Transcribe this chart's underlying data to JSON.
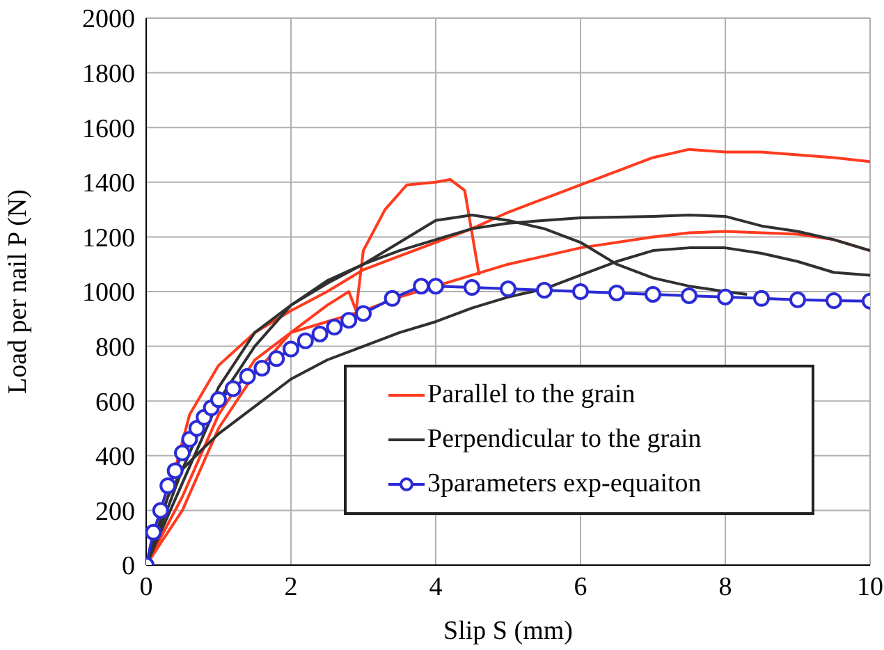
{
  "chart_data": {
    "type": "line",
    "xlabel": "Slip S (mm)",
    "ylabel": "Load per nail P (N)",
    "xlim": [
      0,
      10
    ],
    "xticks": [
      0,
      2,
      4,
      6,
      8,
      10
    ],
    "ylim": [
      0,
      2000
    ],
    "yticks": [
      0,
      200,
      400,
      600,
      800,
      1000,
      1200,
      1400,
      1600,
      1800,
      2000
    ],
    "grid": true,
    "legend": "bottom right",
    "line_style": "solid",
    "series": [
      {
        "name": "Parallel to the grain",
        "color": "#ff3b1f",
        "marker": "none",
        "x": [
          0,
          0.3,
          0.6,
          1,
          1.5,
          2,
          2.5,
          3,
          3.5,
          4,
          4.5,
          5,
          5.5,
          6,
          6.5,
          7,
          7.5,
          8,
          8.5,
          9,
          9.5,
          10
        ],
        "values": [
          0,
          250,
          550,
          730,
          850,
          930,
          1000,
          1080,
          1130,
          1180,
          1230,
          1290,
          1340,
          1390,
          1440,
          1490,
          1520,
          1510,
          1510,
          1500,
          1490,
          1475
        ]
      },
      {
        "color": "#ff3b1f",
        "marker": "none",
        "x": [
          0,
          0.5,
          1,
          1.5,
          2,
          2.5,
          2.8,
          2.9,
          3,
          3.3,
          3.6,
          4,
          4.2,
          4.4,
          4.6
        ],
        "values": [
          0,
          200,
          500,
          700,
          850,
          950,
          1000,
          930,
          1150,
          1300,
          1390,
          1400,
          1410,
          1370,
          1060
        ]
      },
      {
        "color": "#ff3b1f",
        "marker": "none",
        "x": [
          0,
          0.5,
          1,
          1.5,
          2,
          2.5,
          3,
          3.5,
          4,
          5,
          6,
          7,
          7.5,
          8,
          9,
          9.5,
          10
        ],
        "values": [
          0,
          250,
          550,
          750,
          850,
          890,
          930,
          980,
          1020,
          1100,
          1160,
          1200,
          1215,
          1220,
          1210,
          1190,
          1150
        ]
      },
      {
        "name": "Perpendicular to the grain",
        "color": "#303030",
        "marker": "none",
        "x": [
          0,
          0.5,
          1,
          1.5,
          2,
          2.5,
          3,
          3.5,
          4,
          4.5,
          5,
          5.5,
          6,
          6.5,
          7,
          7.5,
          8,
          8.3
        ],
        "values": [
          0,
          350,
          650,
          850,
          950,
          1030,
          1100,
          1180,
          1260,
          1280,
          1260,
          1230,
          1180,
          1100,
          1050,
          1020,
          1000,
          990
        ]
      },
      {
        "color": "#303030",
        "marker": "none",
        "x": [
          0,
          0.5,
          1,
          1.5,
          2,
          2.5,
          3,
          3.5,
          4,
          4.5,
          5,
          5.5,
          6,
          7,
          7.5,
          8,
          8.5,
          9,
          9.5,
          10
        ],
        "values": [
          0,
          300,
          600,
          800,
          950,
          1040,
          1100,
          1150,
          1190,
          1230,
          1250,
          1260,
          1270,
          1275,
          1280,
          1275,
          1240,
          1220,
          1190,
          1150
        ]
      },
      {
        "color": "#303030",
        "marker": "none",
        "x": [
          0,
          0.3,
          0.5,
          0.8,
          1,
          1.5,
          2,
          2.5,
          3,
          3.5,
          4,
          4.5,
          5,
          5.5,
          6,
          6.5,
          7,
          7.5,
          8,
          8.5,
          9,
          9.5,
          10
        ],
        "values": [
          0,
          250,
          350,
          430,
          480,
          580,
          680,
          750,
          800,
          850,
          890,
          940,
          980,
          1010,
          1060,
          1110,
          1150,
          1160,
          1160,
          1140,
          1110,
          1070,
          1060
        ]
      },
      {
        "name": "3parameters exp-equaiton",
        "color": "#2b2bd6",
        "marker": "circle",
        "x": [
          0,
          0.1,
          0.2,
          0.3,
          0.4,
          0.5,
          0.6,
          0.7,
          0.8,
          0.9,
          1,
          1.2,
          1.4,
          1.6,
          1.8,
          2,
          2.2,
          2.4,
          2.6,
          2.8,
          3,
          3.4,
          3.8,
          4,
          4.5,
          5,
          5.5,
          6,
          6.5,
          7,
          7.5,
          8,
          8.5,
          9,
          9.5,
          10
        ],
        "values": [
          0,
          120,
          200,
          290,
          345,
          410,
          460,
          500,
          540,
          575,
          605,
          645,
          690,
          720,
          755,
          790,
          820,
          845,
          870,
          895,
          920,
          975,
          1020,
          1020,
          1015,
          1010,
          1005,
          1000,
          995,
          990,
          985,
          980,
          975,
          970,
          967,
          965
        ]
      }
    ]
  }
}
